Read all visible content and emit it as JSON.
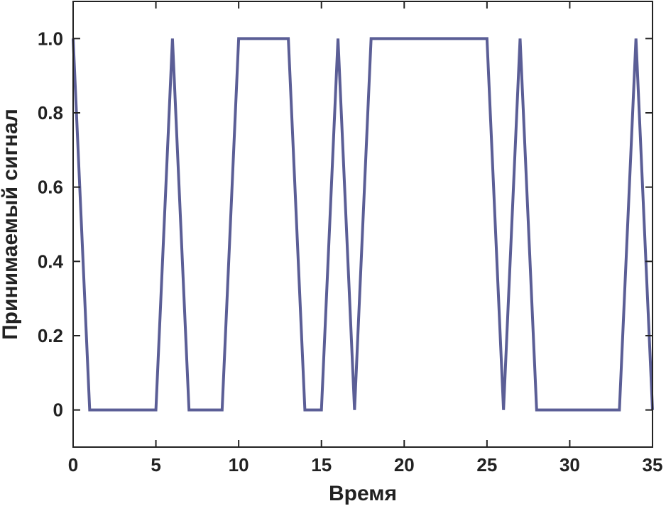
{
  "chart_data": {
    "type": "line",
    "title": "",
    "xlabel": "Время",
    "ylabel": "Принимаемый сигнал",
    "xlim": [
      0,
      35
    ],
    "ylim": [
      -0.1,
      1.1
    ],
    "grid": false,
    "x_ticks": [
      0,
      5,
      10,
      15,
      20,
      25,
      30,
      35
    ],
    "x_tick_labels": [
      "0",
      "5",
      "10",
      "15",
      "20",
      "25",
      "30",
      "35"
    ],
    "y_ticks": [
      0,
      0.2,
      0.4,
      0.6,
      0.8,
      1.0
    ],
    "y_tick_labels": [
      "0",
      "0.2",
      "0.4",
      "0.6",
      "0.8",
      "1.0"
    ],
    "line_color": "#5b5e96",
    "series": [
      {
        "x": [
          0,
          1,
          2,
          3,
          4,
          5,
          6,
          7,
          8,
          9,
          10,
          11,
          12,
          13,
          14,
          15,
          16,
          17,
          18,
          19,
          20,
          21,
          22,
          23,
          24,
          25,
          26,
          27,
          28,
          29,
          30,
          31,
          32,
          33,
          34,
          35
        ],
        "values": [
          1,
          0,
          0,
          0,
          0,
          0,
          1,
          0,
          0,
          0,
          1,
          1,
          1,
          1,
          0,
          0,
          1,
          0,
          1,
          1,
          1,
          1,
          1,
          1,
          1,
          1,
          0,
          1,
          0,
          0,
          0,
          0,
          0,
          0,
          1,
          0
        ]
      }
    ]
  }
}
